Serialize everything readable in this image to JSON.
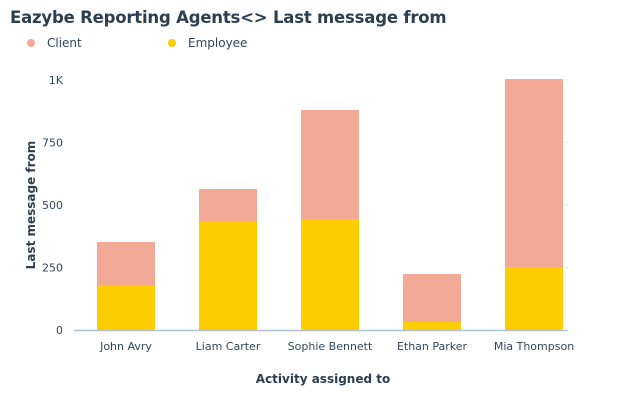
{
  "chart_data": {
    "type": "bar",
    "stacked": true,
    "title": "Eazybe Reporting Agents<> Last message from",
    "xlabel": "Activity assigned to",
    "ylabel": "Last message from",
    "categories": [
      "John Avry",
      "Liam Carter",
      "Sophie Bennett",
      "Ethan Parker",
      "Mia Thompson"
    ],
    "series": [
      {
        "name": "Employee",
        "color": "#ffcc00",
        "values": [
          180,
          436,
          444,
          32,
          252
        ]
      },
      {
        "name": "Client",
        "color": "#f2a996",
        "values": [
          172,
          128,
          436,
          192,
          752
        ]
      }
    ],
    "legend_order": [
      "Client",
      "Employee"
    ],
    "ylim": [
      0,
      1000
    ],
    "yticks": [
      0,
      250,
      500,
      750,
      1000
    ],
    "ytick_labels": [
      "0",
      "250",
      "500",
      "750",
      "1K"
    ],
    "grid": false,
    "legend_position": "top-left"
  }
}
